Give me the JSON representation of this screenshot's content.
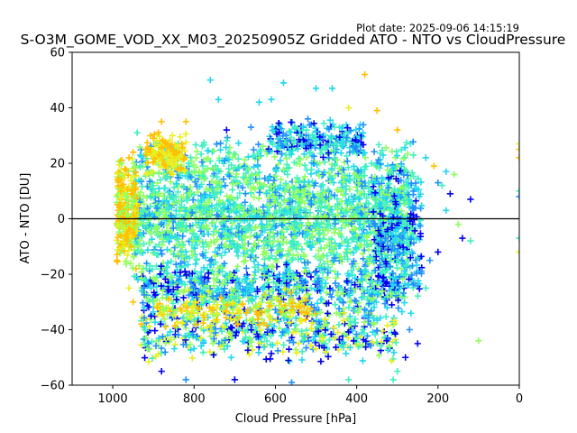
{
  "plot_date": "Plot date: 2025-09-06 14:15:19",
  "chart_data": {
    "type": "scatter",
    "title": "S-O3M_GOME_VOD_XX_M03_20250905Z Gridded ATO - NTO vs CloudPressure",
    "xlabel": "Cloud Pressure [hPa]",
    "ylabel": "ATO - NTO [DU]",
    "xlim": [
      1100,
      0
    ],
    "ylim": [
      -60,
      60
    ],
    "x_inverted": true,
    "x_ticks": [
      1000,
      800,
      600,
      400,
      200,
      0
    ],
    "x_tick_labels": [
      "1000",
      "800",
      "600",
      "400",
      "200",
      "0"
    ],
    "y_ticks": [
      60,
      40,
      20,
      0,
      -20,
      -40,
      -60
    ],
    "y_tick_labels": [
      "60",
      "40",
      "20",
      "0",
      "−20",
      "−40",
      "−60"
    ],
    "marker": "plus",
    "reference_line_y": 0,
    "color_groups": [
      "#0000ee",
      "#1f8fff",
      "#20d8f0",
      "#40f0c0",
      "#90ff60",
      "#e8f020",
      "#ffc000"
    ],
    "points": [
      {
        "x": 760,
        "y": 50,
        "c": "#20d8f0"
      },
      {
        "x": 380,
        "y": 52,
        "c": "#ffc000"
      },
      {
        "x": 740,
        "y": 43,
        "c": "#20d8f0"
      },
      {
        "x": 640,
        "y": 42,
        "c": "#20d8f0"
      },
      {
        "x": 580,
        "y": 49,
        "c": "#20d8f0"
      },
      {
        "x": 500,
        "y": 47,
        "c": "#20d8f0"
      },
      {
        "x": 460,
        "y": 47,
        "c": "#20d8f0"
      },
      {
        "x": 610,
        "y": 43,
        "c": "#20d8f0"
      },
      {
        "x": 420,
        "y": 40,
        "c": "#e8f020"
      },
      {
        "x": 350,
        "y": 39,
        "c": "#ffc000"
      },
      {
        "x": 520,
        "y": 36,
        "c": "#1f8fff"
      },
      {
        "x": 820,
        "y": 35,
        "c": "#ffc000"
      },
      {
        "x": 880,
        "y": 35,
        "c": "#ffc000"
      },
      {
        "x": 660,
        "y": 33,
        "c": "#1f8fff"
      },
      {
        "x": 720,
        "y": 32,
        "c": "#0000ee"
      },
      {
        "x": 300,
        "y": 32,
        "c": "#ffc000"
      },
      {
        "x": 940,
        "y": 31,
        "c": "#40f0c0"
      },
      {
        "x": 900,
        "y": 29,
        "c": "#ffc000"
      },
      {
        "x": 0,
        "y": 27,
        "c": "#e8f020"
      },
      {
        "x": 0,
        "y": 25,
        "c": "#ffc000"
      },
      {
        "x": 0,
        "y": 22,
        "c": "#ffc000"
      },
      {
        "x": 0,
        "y": 10,
        "c": "#40f0c0"
      },
      {
        "x": 0,
        "y": 8,
        "c": "#1f8fff"
      },
      {
        "x": 0,
        "y": -7,
        "c": "#40f0c0"
      },
      {
        "x": 0,
        "y": -12,
        "c": "#e8f020"
      },
      {
        "x": 210,
        "y": 19,
        "c": "#ffc000"
      },
      {
        "x": 180,
        "y": 17,
        "c": "#20d8f0"
      },
      {
        "x": 160,
        "y": 16,
        "c": "#90ff60"
      },
      {
        "x": 190,
        "y": 12,
        "c": "#40f0c0"
      },
      {
        "x": 230,
        "y": 22,
        "c": "#20d8f0"
      },
      {
        "x": 200,
        "y": 13,
        "c": "#1f8fff"
      },
      {
        "x": 170,
        "y": 9,
        "c": "#0000ee"
      },
      {
        "x": 120,
        "y": 7,
        "c": "#0000ee"
      },
      {
        "x": 150,
        "y": -2,
        "c": "#90ff60"
      },
      {
        "x": 140,
        "y": -7,
        "c": "#0000ee"
      },
      {
        "x": 120,
        "y": -8,
        "c": "#40f0c0"
      },
      {
        "x": 180,
        "y": 3,
        "c": "#20d8f0"
      },
      {
        "x": 200,
        "y": -12,
        "c": "#0000ee"
      },
      {
        "x": 220,
        "y": -15,
        "c": "#1f8fff"
      },
      {
        "x": 230,
        "y": -25,
        "c": "#40f0c0"
      },
      {
        "x": 100,
        "y": -44,
        "c": "#90ff60"
      },
      {
        "x": 250,
        "y": -45,
        "c": "#0000ee"
      },
      {
        "x": 270,
        "y": -40,
        "c": "#1f8fff"
      },
      {
        "x": 280,
        "y": -50,
        "c": "#0000ee"
      },
      {
        "x": 300,
        "y": -55,
        "c": "#40f0c0"
      },
      {
        "x": 310,
        "y": -58,
        "c": "#40f0c0"
      },
      {
        "x": 820,
        "y": -58,
        "c": "#1f8fff"
      },
      {
        "x": 700,
        "y": -58,
        "c": "#0000ee"
      },
      {
        "x": 560,
        "y": -59,
        "c": "#1f8fff"
      },
      {
        "x": 420,
        "y": -58,
        "c": "#40f0c0"
      },
      {
        "x": 880,
        "y": -55,
        "c": "#0000ee"
      },
      {
        "x": 950,
        "y": -30,
        "c": "#ffc000"
      },
      {
        "x": 930,
        "y": -38,
        "c": "#ffc000"
      },
      {
        "x": 960,
        "y": -25,
        "c": "#e8f020"
      },
      {
        "x": 990,
        "y": -15,
        "c": "#ffc000"
      },
      {
        "x": 985,
        "y": 5,
        "c": "#ffc000"
      },
      {
        "x": 980,
        "y": 10,
        "c": "#ffc000"
      },
      {
        "x": 960,
        "y": 22,
        "c": "#ffc000"
      },
      {
        "x": 950,
        "y": 24,
        "c": "#ffc000"
      },
      {
        "x": 970,
        "y": 18,
        "c": "#ffc000"
      }
    ],
    "clusters": [
      {
        "xr": [
          950,
          260
        ],
        "yr": [
          -25,
          30
        ],
        "n": 2200,
        "colors": [
          "#40f0c0",
          "#90ff60",
          "#20d8f0",
          "#1f8fff",
          "#40f0c0",
          "#90ff60"
        ]
      },
      {
        "xr": [
          930,
          280
        ],
        "yr": [
          -35,
          -15
        ],
        "n": 650,
        "colors": [
          "#1f8fff",
          "#20d8f0",
          "#40f0c0",
          "#0000ee",
          "#90ff60"
        ]
      },
      {
        "xr": [
          930,
          300
        ],
        "yr": [
          -52,
          -30
        ],
        "n": 520,
        "colors": [
          "#0000ee",
          "#1f8fff",
          "#90ff60",
          "#e8f020",
          "#40f0c0",
          "#20d8f0"
        ]
      },
      {
        "xr": [
          990,
          940
        ],
        "yr": [
          -20,
          25
        ],
        "n": 260,
        "colors": [
          "#ffc000",
          "#e8f020",
          "#ffc000",
          "#90ff60"
        ]
      },
      {
        "xr": [
          920,
          820
        ],
        "yr": [
          15,
          32
        ],
        "n": 140,
        "colors": [
          "#ffc000",
          "#e8f020"
        ]
      },
      {
        "xr": [
          360,
          240
        ],
        "yr": [
          -35,
          25
        ],
        "n": 260,
        "colors": [
          "#1f8fff",
          "#0000ee",
          "#20d8f0",
          "#40f0c0"
        ]
      },
      {
        "xr": [
          620,
          380
        ],
        "yr": [
          22,
          36
        ],
        "n": 220,
        "colors": [
          "#20d8f0",
          "#1f8fff",
          "#0000ee",
          "#40f0c0"
        ]
      },
      {
        "xr": [
          900,
          500
        ],
        "yr": [
          -40,
          -25
        ],
        "n": 180,
        "colors": [
          "#e8f020",
          "#ffc000",
          "#90ff60"
        ]
      }
    ]
  }
}
